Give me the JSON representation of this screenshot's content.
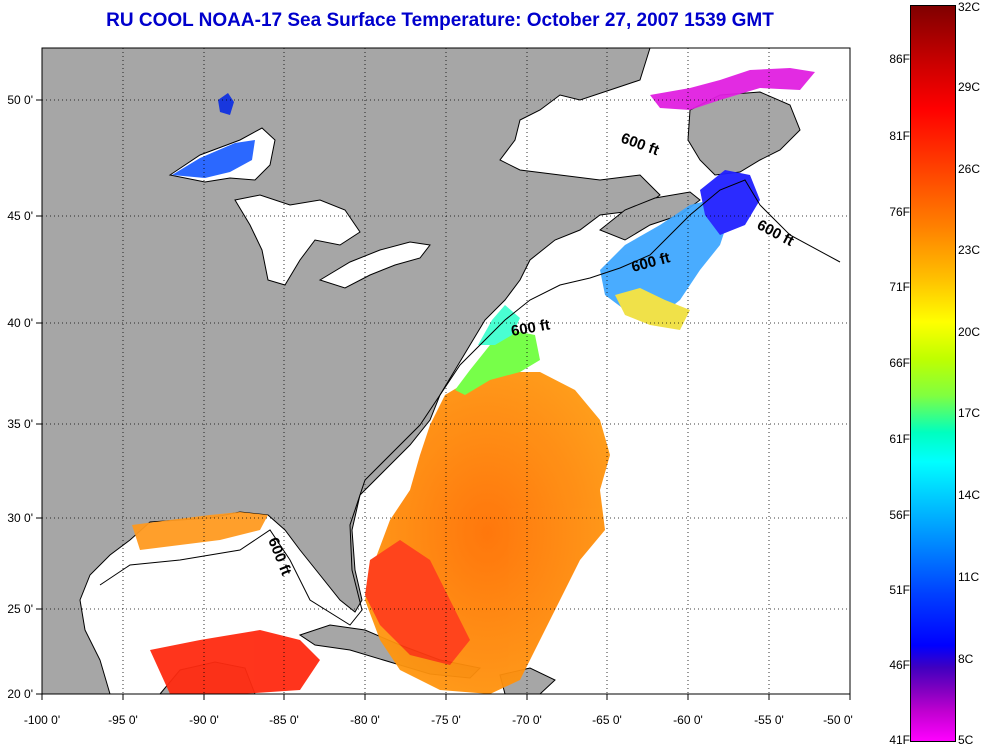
{
  "title": "RU COOL  NOAA-17  Sea Surface Temperature:  October 27, 2007 1539 GMT",
  "map": {
    "lon_ticks": [
      "-100 0'",
      "-95 0'",
      "-90 0'",
      "-85 0'",
      "-80 0'",
      "-75 0'",
      "-70 0'",
      "-65 0'",
      "-60 0'",
      "-55 0'",
      "-50 0'"
    ],
    "lat_ticks": [
      "50 0'",
      "45 0'",
      "40 0'",
      "35 0'",
      "30 0'",
      "25 0'",
      "20 0'"
    ],
    "lon_range": [
      -100,
      -50
    ],
    "lat_range": [
      20,
      52.5
    ],
    "grid": true,
    "isobath_label": "600 ft",
    "colors": {
      "land": "#a6a6a6",
      "water": "#ffffff",
      "coast": "#000000"
    }
  },
  "colorbar": {
    "fahrenheit": [
      "86F",
      "81F",
      "76F",
      "71F",
      "66F",
      "61F",
      "56F",
      "51F",
      "46F",
      "41F"
    ],
    "celsius": [
      "32C",
      "29C",
      "26C",
      "23C",
      "20C",
      "17C",
      "14C",
      "11C",
      "8C",
      "5C"
    ],
    "range_c": [
      5,
      32
    ]
  }
}
